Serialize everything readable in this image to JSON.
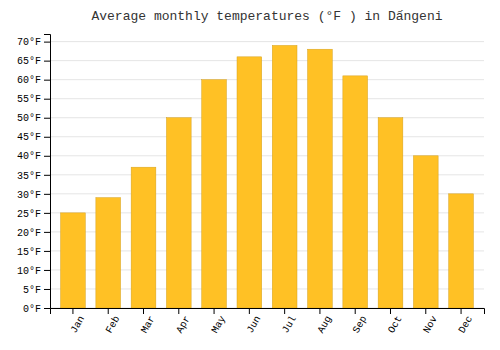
{
  "chart_data": {
    "type": "bar",
    "title": "Average monthly temperatures (°F ) in Dấngeni",
    "categories": [
      "Jan",
      "Feb",
      "Mar",
      "Apr",
      "May",
      "Jun",
      "Jul",
      "Aug",
      "Sep",
      "Oct",
      "Nov",
      "Dec"
    ],
    "values": [
      25,
      29,
      37,
      50,
      60,
      66,
      69,
      68,
      61,
      50,
      40,
      30
    ],
    "color": "#FFC125",
    "ylim": [
      0,
      72
    ],
    "yticks": [
      {
        "value": 0,
        "label": "0°F"
      },
      {
        "value": 5,
        "label": "5°F"
      },
      {
        "value": 10,
        "label": "10°F"
      },
      {
        "value": 15,
        "label": "15°F"
      },
      {
        "value": 20,
        "label": "20°F"
      },
      {
        "value": 25,
        "label": "25°F"
      },
      {
        "value": 30,
        "label": "30°F"
      },
      {
        "value": 35,
        "label": "35°F"
      },
      {
        "value": 40,
        "label": "40°F"
      },
      {
        "value": 45,
        "label": "45°F"
      },
      {
        "value": 50,
        "label": "50°F"
      },
      {
        "value": 55,
        "label": "55°F"
      },
      {
        "value": 60,
        "label": "60°F"
      },
      {
        "value": 65,
        "label": "65°F"
      },
      {
        "value": 70,
        "label": "70°F"
      }
    ],
    "grid": true
  }
}
